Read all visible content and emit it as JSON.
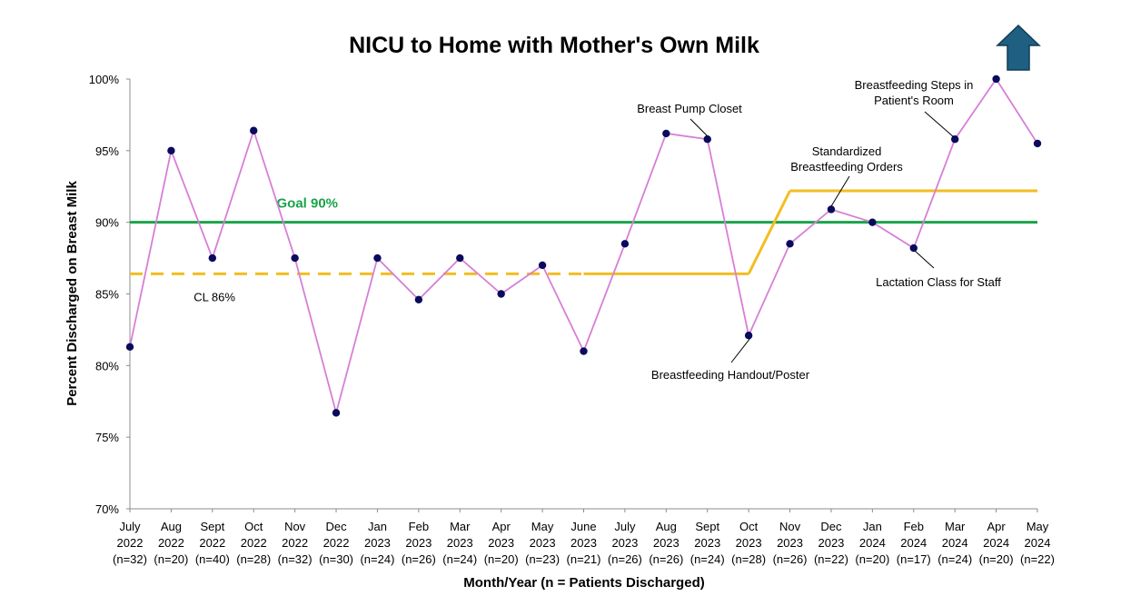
{
  "chart_data": {
    "type": "line",
    "title": "NICU to Home with Mother's Own Milk",
    "xlabel": "Month/Year (n = Patients Discharged)",
    "ylabel": "Percent Discharged on Breast Milk",
    "ylim": [
      70,
      100
    ],
    "yticks": [
      "70%",
      "75%",
      "80%",
      "85%",
      "90%",
      "95%",
      "100%"
    ],
    "categories": [
      {
        "month": "July",
        "year": "2022",
        "n": "(n=32)"
      },
      {
        "month": "Aug",
        "year": "2022",
        "n": "(n=20)"
      },
      {
        "month": "Sept",
        "year": "2022",
        "n": "(n=40)"
      },
      {
        "month": "Oct",
        "year": "2022",
        "n": "(n=28)"
      },
      {
        "month": "Nov",
        "year": "2022",
        "n": "(n=32)"
      },
      {
        "month": "Dec",
        "year": "2022",
        "n": "(n=30)"
      },
      {
        "month": "Jan",
        "year": "2023",
        "n": "(n=24)"
      },
      {
        "month": "Feb",
        "year": "2023",
        "n": "(n=26)"
      },
      {
        "month": "Mar",
        "year": "2023",
        "n": "(n=24)"
      },
      {
        "month": "Apr",
        "year": "2023",
        "n": "(n=20)"
      },
      {
        "month": "May",
        "year": "2023",
        "n": "(n=23)"
      },
      {
        "month": "June",
        "year": "2023",
        "n": "(n=21)"
      },
      {
        "month": "July",
        "year": "2023",
        "n": "(n=26)"
      },
      {
        "month": "Aug",
        "year": "2023",
        "n": "(n=26)"
      },
      {
        "month": "Sept",
        "year": "2023",
        "n": "(n=24)"
      },
      {
        "month": "Oct",
        "year": "2023",
        "n": "(n=28)"
      },
      {
        "month": "Nov",
        "year": "2023",
        "n": "(n=26)"
      },
      {
        "month": "Dec",
        "year": "2023",
        "n": "(n=22)"
      },
      {
        "month": "Jan",
        "year": "2024",
        "n": "(n=20)"
      },
      {
        "month": "Feb",
        "year": "2024",
        "n": "(n=17)"
      },
      {
        "month": "Mar",
        "year": "2024",
        "n": "(n=24)"
      },
      {
        "month": "Apr",
        "year": "2024",
        "n": "(n=20)"
      },
      {
        "month": "May",
        "year": "2024",
        "n": "(n=22)"
      }
    ],
    "series": [
      {
        "values": [
          81.3,
          95.0,
          87.5,
          96.4,
          87.5,
          76.7,
          87.5,
          84.6,
          87.5,
          85.0,
          87.0,
          81.0,
          88.5,
          96.2,
          95.8,
          82.1,
          88.5,
          90.9,
          90.0,
          88.2,
          95.8,
          100.0,
          95.5
        ],
        "color": "#d77fd6",
        "marker_color": "#0a0a5e"
      }
    ],
    "goal_line": {
      "value": 90,
      "label": "Goal 90%",
      "color": "#1aa34a"
    },
    "center_line": {
      "label": "CL 86%",
      "color": "#f2be22",
      "segments": [
        {
          "from": 0,
          "to": 11,
          "value": 86.4,
          "style": "dashed"
        },
        {
          "from": 11,
          "to": 15,
          "value": 86.4,
          "style": "solid"
        },
        {
          "from": 15,
          "to": 16,
          "value_from": 86.4,
          "value_to": 92.2,
          "style": "solid"
        },
        {
          "from": 16,
          "to": 22,
          "value": 92.2,
          "style": "solid"
        }
      ]
    },
    "annotations": [
      {
        "lines": [
          "Breast Pump Closet"
        ],
        "point": 14
      },
      {
        "lines": [
          "Breastfeeding Handout/Poster"
        ],
        "point": 15
      },
      {
        "lines": [
          "Standardized",
          "Breastfeeding Orders"
        ],
        "point": 17
      },
      {
        "lines": [
          "Lactation Class for Staff"
        ],
        "point": 19
      },
      {
        "lines": [
          "Breastfeeding Steps in",
          "Patient's Room"
        ],
        "point": 20
      }
    ],
    "direction_arrow": {
      "direction": "up",
      "color": "#1f5f82"
    }
  }
}
